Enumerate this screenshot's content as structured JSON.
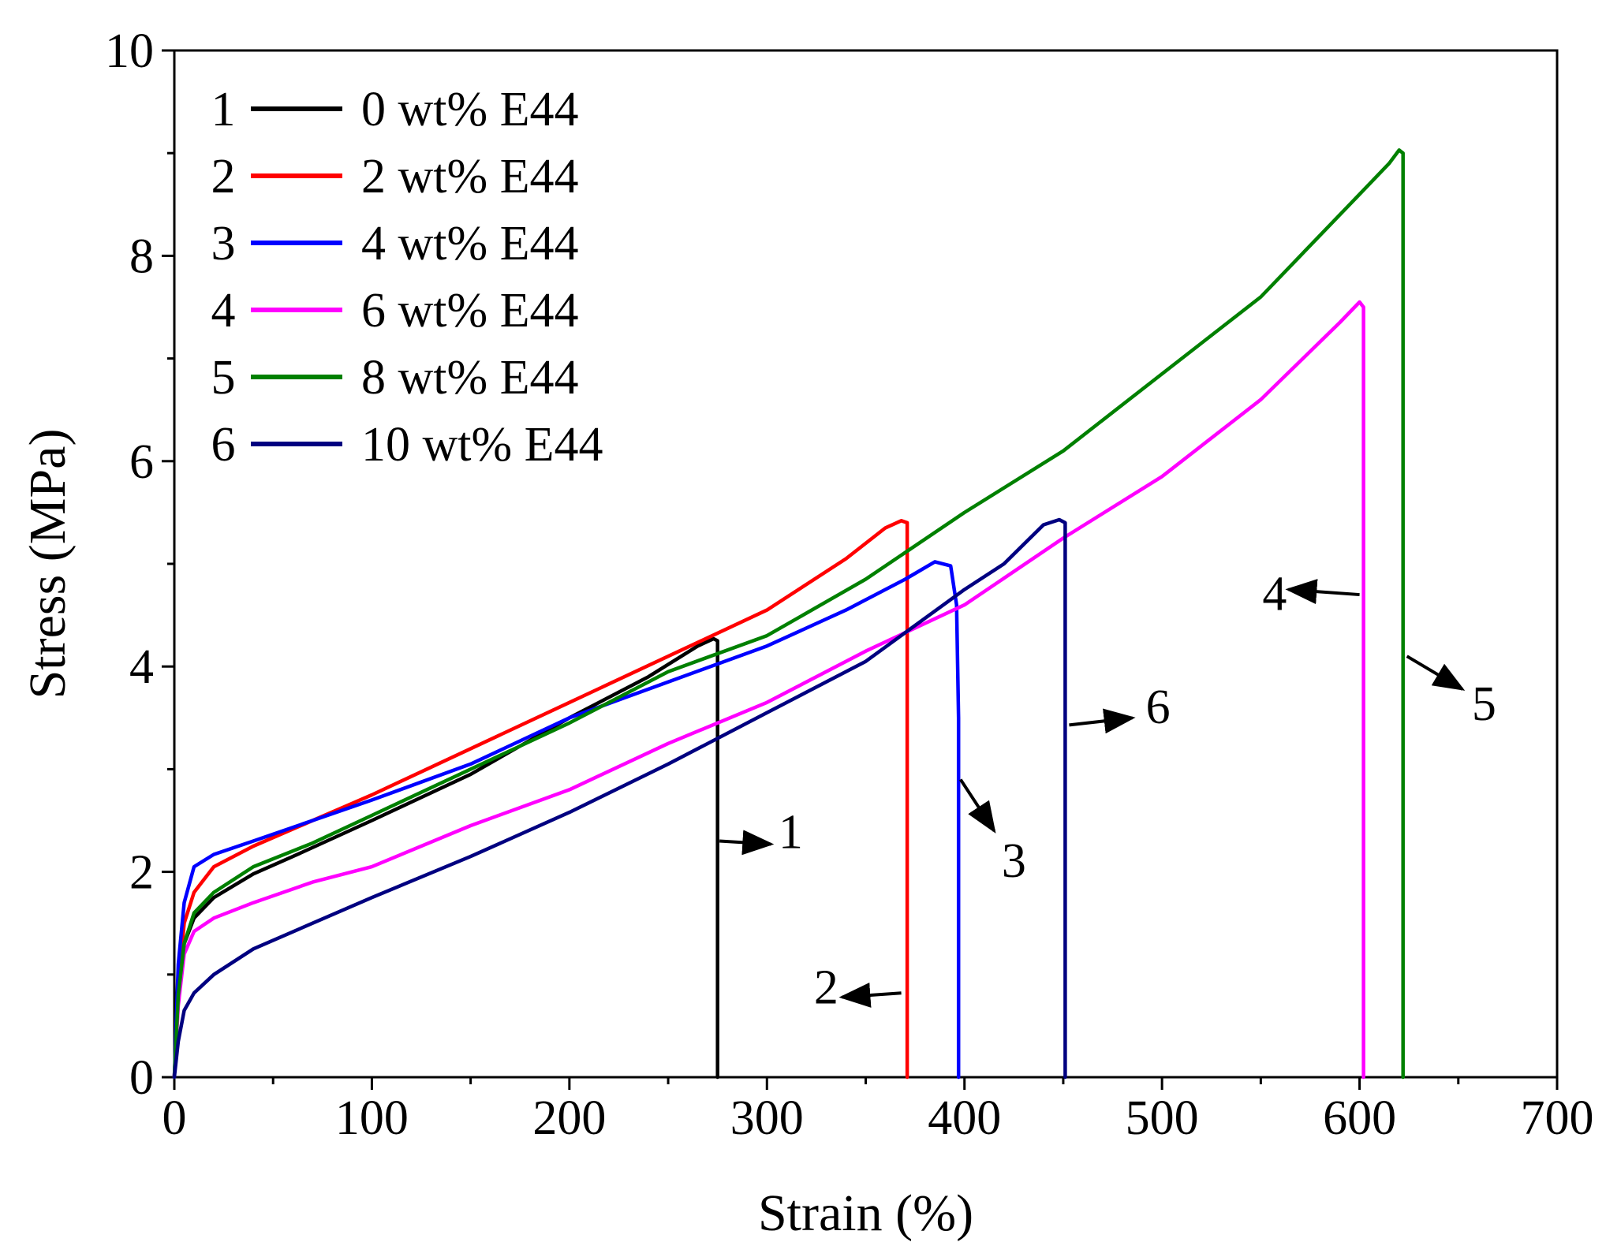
{
  "chart_data": {
    "type": "line",
    "title": "",
    "xlabel": "Strain (%)",
    "ylabel": "Stress (MPa)",
    "xlim": [
      0,
      700
    ],
    "ylim": [
      0,
      10
    ],
    "xticks": [
      0,
      100,
      200,
      300,
      400,
      500,
      600,
      700
    ],
    "yticks": [
      0,
      2,
      4,
      6,
      8,
      10
    ],
    "xtick_labels": [
      "0",
      "100",
      "200",
      "300",
      "400",
      "500",
      "600",
      "700"
    ],
    "ytick_labels": [
      "0",
      "2",
      "4",
      "6",
      "8",
      "10"
    ],
    "grid": false,
    "legend_position": "top-left",
    "series": [
      {
        "id": "1",
        "name": "0 wt% E44",
        "color": "#000000",
        "points": [
          [
            0,
            0
          ],
          [
            2,
            0.8
          ],
          [
            5,
            1.3
          ],
          [
            10,
            1.55
          ],
          [
            20,
            1.75
          ],
          [
            40,
            1.98
          ],
          [
            60,
            2.15
          ],
          [
            100,
            2.5
          ],
          [
            150,
            2.95
          ],
          [
            200,
            3.5
          ],
          [
            240,
            3.9
          ],
          [
            265,
            4.2
          ],
          [
            273,
            4.27
          ],
          [
            275,
            4.25
          ],
          [
            275,
            0
          ]
        ]
      },
      {
        "id": "2",
        "name": "2 wt% E44",
        "color": "#ff0000",
        "points": [
          [
            0,
            0
          ],
          [
            2,
            0.9
          ],
          [
            5,
            1.5
          ],
          [
            10,
            1.8
          ],
          [
            20,
            2.05
          ],
          [
            40,
            2.25
          ],
          [
            70,
            2.5
          ],
          [
            100,
            2.75
          ],
          [
            150,
            3.2
          ],
          [
            200,
            3.65
          ],
          [
            250,
            4.1
          ],
          [
            300,
            4.55
          ],
          [
            340,
            5.05
          ],
          [
            360,
            5.35
          ],
          [
            368,
            5.42
          ],
          [
            371,
            5.4
          ],
          [
            371,
            0
          ]
        ]
      },
      {
        "id": "3",
        "name": "4 wt% E44",
        "color": "#0000ff",
        "points": [
          [
            0,
            0
          ],
          [
            2,
            1.1
          ],
          [
            5,
            1.7
          ],
          [
            10,
            2.05
          ],
          [
            20,
            2.17
          ],
          [
            40,
            2.3
          ],
          [
            70,
            2.5
          ],
          [
            100,
            2.7
          ],
          [
            150,
            3.05
          ],
          [
            200,
            3.5
          ],
          [
            250,
            3.85
          ],
          [
            300,
            4.2
          ],
          [
            340,
            4.55
          ],
          [
            370,
            4.85
          ],
          [
            385,
            5.02
          ],
          [
            393,
            4.98
          ],
          [
            396,
            4.6
          ],
          [
            397,
            3.5
          ],
          [
            397,
            0
          ]
        ]
      },
      {
        "id": "4",
        "name": "6 wt% E44",
        "color": "#ff00ff",
        "points": [
          [
            0,
            0
          ],
          [
            2,
            0.7
          ],
          [
            5,
            1.2
          ],
          [
            10,
            1.42
          ],
          [
            20,
            1.55
          ],
          [
            40,
            1.7
          ],
          [
            70,
            1.9
          ],
          [
            100,
            2.05
          ],
          [
            150,
            2.45
          ],
          [
            200,
            2.8
          ],
          [
            250,
            3.25
          ],
          [
            300,
            3.65
          ],
          [
            350,
            4.15
          ],
          [
            400,
            4.6
          ],
          [
            450,
            5.25
          ],
          [
            500,
            5.85
          ],
          [
            550,
            6.6
          ],
          [
            590,
            7.35
          ],
          [
            600,
            7.55
          ],
          [
            602,
            7.5
          ],
          [
            602,
            0
          ]
        ]
      },
      {
        "id": "5",
        "name": "8 wt% E44",
        "color": "#008000",
        "points": [
          [
            0,
            0
          ],
          [
            2,
            0.8
          ],
          [
            5,
            1.3
          ],
          [
            10,
            1.6
          ],
          [
            20,
            1.8
          ],
          [
            40,
            2.05
          ],
          [
            70,
            2.28
          ],
          [
            100,
            2.55
          ],
          [
            150,
            3.0
          ],
          [
            200,
            3.45
          ],
          [
            250,
            3.95
          ],
          [
            300,
            4.3
          ],
          [
            350,
            4.85
          ],
          [
            400,
            5.5
          ],
          [
            450,
            6.1
          ],
          [
            500,
            6.85
          ],
          [
            550,
            7.6
          ],
          [
            600,
            8.6
          ],
          [
            615,
            8.9
          ],
          [
            620,
            9.03
          ],
          [
            622,
            9.0
          ],
          [
            622,
            0
          ]
        ]
      },
      {
        "id": "6",
        "name": "10 wt% E44",
        "color": "#000080",
        "points": [
          [
            0,
            0
          ],
          [
            2,
            0.35
          ],
          [
            5,
            0.65
          ],
          [
            10,
            0.82
          ],
          [
            20,
            1.0
          ],
          [
            40,
            1.25
          ],
          [
            70,
            1.5
          ],
          [
            100,
            1.75
          ],
          [
            150,
            2.15
          ],
          [
            200,
            2.58
          ],
          [
            250,
            3.05
          ],
          [
            300,
            3.55
          ],
          [
            350,
            4.05
          ],
          [
            400,
            4.75
          ],
          [
            420,
            5.0
          ],
          [
            440,
            5.38
          ],
          [
            448,
            5.43
          ],
          [
            451,
            5.4
          ],
          [
            451,
            0
          ]
        ]
      }
    ],
    "annotations": [
      {
        "label": "1",
        "arrow_from": [
          276,
          2.3
        ],
        "arrow_to": [
          302,
          2.27
        ],
        "text_at": [
          312,
          2.23
        ]
      },
      {
        "label": "2",
        "arrow_from": [
          368,
          0.82
        ],
        "arrow_to": [
          338,
          0.78
        ],
        "text_at": [
          330,
          0.72
        ]
      },
      {
        "label": "3",
        "arrow_from": [
          398,
          2.9
        ],
        "arrow_to": [
          415,
          2.4
        ],
        "text_at": [
          425,
          1.95
        ]
      },
      {
        "label": "6",
        "arrow_from": [
          453,
          3.43
        ],
        "arrow_to": [
          485,
          3.5
        ],
        "text_at": [
          498,
          3.45
        ]
      },
      {
        "label": "4",
        "arrow_from": [
          600,
          4.7
        ],
        "arrow_to": [
          564,
          4.75
        ],
        "text_at": [
          557,
          4.55
        ]
      },
      {
        "label": "5",
        "arrow_from": [
          624,
          4.1
        ],
        "arrow_to": [
          652,
          3.78
        ],
        "text_at": [
          663,
          3.48
        ]
      }
    ]
  }
}
